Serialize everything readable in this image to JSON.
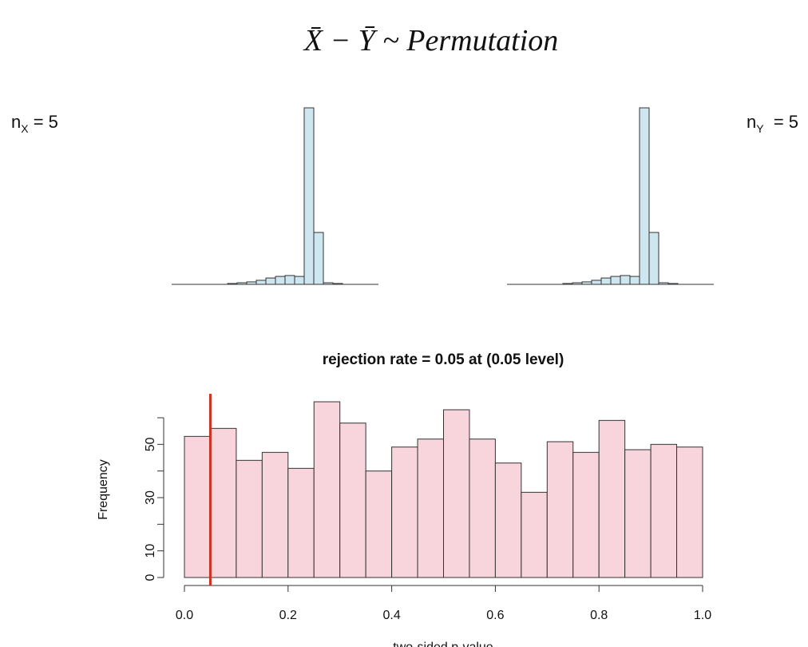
{
  "title": "X̄ − Ȳ ~ Permutation",
  "label_x": {
    "base": "n",
    "sub": "X",
    "rest": " = 5"
  },
  "label_y": {
    "base": "n",
    "sub": "Y",
    "rest": "  = 5"
  },
  "chart_data": [
    {
      "type": "bar",
      "color": "#cde6f0",
      "values": [
        0.5,
        0.9,
        1.4,
        2.3,
        3.6,
        4.5,
        5,
        4.5,
        100,
        29.4,
        0.9,
        0.5
      ]
    },
    {
      "type": "bar",
      "color": "#cde6f0",
      "values": [
        0.5,
        0.9,
        1.4,
        2.3,
        3.6,
        4.5,
        5,
        4.5,
        100,
        29.4,
        0.9,
        0.5
      ]
    },
    {
      "type": "histogram",
      "title": "rejection rate = 0.05 at (0.05 level)",
      "x_label": "two-sided p-value",
      "y_label": "Frequency",
      "color": "#f8d5dd",
      "bins": [
        0,
        0.05,
        0.1,
        0.15,
        0.2,
        0.25,
        0.3,
        0.35,
        0.4,
        0.45,
        0.5,
        0.55,
        0.6,
        0.65,
        0.7,
        0.75,
        0.8,
        0.85,
        0.9,
        0.95,
        1
      ],
      "values": [
        53,
        56,
        44,
        47,
        41,
        66,
        58,
        40,
        49,
        52,
        63,
        52,
        43,
        32,
        51,
        47,
        59,
        48,
        50,
        49
      ],
      "xlim": [
        0,
        1
      ],
      "ylim": [
        0,
        69
      ],
      "xticks": [
        {
          "value": 0,
          "label": "0.0"
        },
        0.2,
        0.4,
        0.6,
        0.8,
        {
          "value": 1,
          "label": "1.0"
        }
      ],
      "yticks": [
        0,
        10,
        30,
        50
      ],
      "yminor": [
        20,
        40,
        60
      ],
      "vline": 0.05,
      "vline_color": "#cc3322"
    }
  ]
}
